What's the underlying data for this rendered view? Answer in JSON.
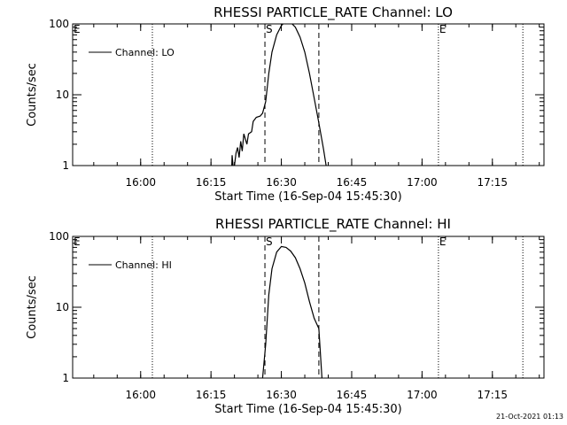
{
  "footer": {
    "timestamp": "21-Oct-2021 01:13"
  },
  "colors": {
    "background": "#ffffff",
    "foreground": "#000000"
  },
  "chart_data": [
    {
      "type": "line",
      "title": "RHESSI PARTICLE_RATE Channel: LO",
      "xlabel": "Start Time (16-Sep-04 15:45:30)",
      "ylabel": "Counts/sec",
      "y_scale": "log",
      "ylim": [
        1,
        100
      ],
      "xlim": [
        "15:45:30",
        "17:26:00"
      ],
      "x_ticks": [
        "16:00",
        "16:15",
        "16:30",
        "16:45",
        "17:00",
        "17:15"
      ],
      "y_ticks": [
        "1",
        "10",
        "100"
      ],
      "legend": {
        "placement": "top-left",
        "entries": [
          "Channel: LO"
        ]
      },
      "series": [
        {
          "name": "Channel: LO",
          "points": [
            [
              "16:19:20",
              0.6
            ],
            [
              "16:19:30",
              1.4
            ],
            [
              "16:19:50",
              0.8
            ],
            [
              "16:20:20",
              1.5
            ],
            [
              "16:20:40",
              1.8
            ],
            [
              "16:21:00",
              1.3
            ],
            [
              "16:21:20",
              2.2
            ],
            [
              "16:21:40",
              1.6
            ],
            [
              "16:22:00",
              2.8
            ],
            [
              "16:22:40",
              2.0
            ],
            [
              "16:23:00",
              2.8
            ],
            [
              "16:23:40",
              3.0
            ],
            [
              "16:24:00",
              4.2
            ],
            [
              "16:24:40",
              4.8
            ],
            [
              "16:25:30",
              5.0
            ],
            [
              "16:26:00",
              5.5
            ],
            [
              "16:26:40",
              8.0
            ],
            [
              "16:27:20",
              20.0
            ],
            [
              "16:28:00",
              40.0
            ],
            [
              "16:29:00",
              70.0
            ],
            [
              "16:30:00",
              95.0
            ],
            [
              "16:31:00",
              110.0
            ],
            [
              "16:32:00",
              105.0
            ],
            [
              "16:33:00",
              90.0
            ],
            [
              "16:34:00",
              65.0
            ],
            [
              "16:35:00",
              40.0
            ],
            [
              "16:36:00",
              20.0
            ],
            [
              "16:37:00",
              9.0
            ],
            [
              "16:38:00",
              4.0
            ],
            [
              "16:39:00",
              1.7
            ],
            [
              "16:39:40",
              0.9
            ]
          ]
        }
      ],
      "markers": [
        {
          "label": "E",
          "time": "15:45:30",
          "style": "dotted"
        },
        {
          "label": "",
          "time": "16:02:30",
          "style": "dotted"
        },
        {
          "label": "S",
          "time": "16:26:30",
          "style": "dashed"
        },
        {
          "label": "",
          "time": "16:38:00",
          "style": "dashed"
        },
        {
          "label": "E",
          "time": "17:03:30",
          "style": "dotted"
        },
        {
          "label": "",
          "time": "17:21:30",
          "style": "dotted"
        }
      ]
    },
    {
      "type": "line",
      "title": "RHESSI PARTICLE_RATE Channel: HI",
      "xlabel": "Start Time (16-Sep-04 15:45:30)",
      "ylabel": "Counts/sec",
      "y_scale": "log",
      "ylim": [
        1,
        100
      ],
      "xlim": [
        "15:45:30",
        "17:26:00"
      ],
      "x_ticks": [
        "16:00",
        "16:15",
        "16:30",
        "16:45",
        "17:00",
        "17:15"
      ],
      "y_ticks": [
        "1",
        "10",
        "100"
      ],
      "legend": {
        "placement": "top-left",
        "entries": [
          "Channel: HI"
        ]
      },
      "series": [
        {
          "name": "Channel: HI",
          "points": [
            [
              "16:25:30",
              0.8
            ],
            [
              "16:26:00",
              1.0
            ],
            [
              "16:26:40",
              3.0
            ],
            [
              "16:27:20",
              15.0
            ],
            [
              "16:28:00",
              35.0
            ],
            [
              "16:29:00",
              60.0
            ],
            [
              "16:30:00",
              72.0
            ],
            [
              "16:31:00",
              70.0
            ],
            [
              "16:32:00",
              62.0
            ],
            [
              "16:33:00",
              50.0
            ],
            [
              "16:34:00",
              35.0
            ],
            [
              "16:35:00",
              22.0
            ],
            [
              "16:36:00",
              12.0
            ],
            [
              "16:37:00",
              7.0
            ],
            [
              "16:38:00",
              5.0
            ],
            [
              "16:38:40",
              1.0
            ],
            [
              "16:39:00",
              0.8
            ]
          ]
        }
      ],
      "markers": [
        {
          "label": "E",
          "time": "15:45:30",
          "style": "dotted"
        },
        {
          "label": "",
          "time": "16:02:30",
          "style": "dotted"
        },
        {
          "label": "S",
          "time": "16:26:30",
          "style": "dashed"
        },
        {
          "label": "",
          "time": "16:38:00",
          "style": "dashed"
        },
        {
          "label": "E",
          "time": "17:03:30",
          "style": "dotted"
        },
        {
          "label": "",
          "time": "17:21:30",
          "style": "dotted"
        }
      ]
    }
  ]
}
